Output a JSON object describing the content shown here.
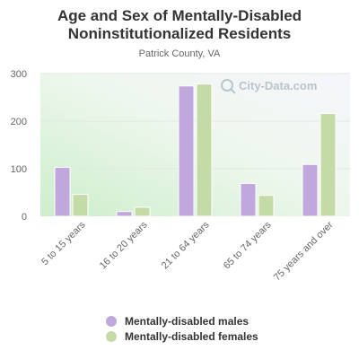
{
  "chart_data": {
    "type": "bar",
    "title": "Age and Sex of Mentally-Disabled Noninstitutionalized Residents",
    "title_lines": [
      "Age and Sex of Mentally-Disabled",
      "Noninstitutionalized Residents"
    ],
    "subtitle": "Patrick County, VA",
    "categories": [
      "5 to 15 years",
      "16 to 20 years",
      "21 to 64 years",
      "65 to 74 years",
      "75 years and over"
    ],
    "series": [
      {
        "name": "Mentally-disabled males",
        "color": "#c0a7dc",
        "values": [
          103,
          10,
          274,
          69,
          109
        ]
      },
      {
        "name": "Mentally-disabled females",
        "color": "#c5dba7",
        "values": [
          46,
          19,
          278,
          44,
          216
        ]
      }
    ],
    "y_ticks": [
      0,
      100,
      200,
      300
    ],
    "ylim": [
      0,
      300
    ],
    "grid": true,
    "legend_position": "bottom",
    "watermark": "City-Data.com"
  }
}
